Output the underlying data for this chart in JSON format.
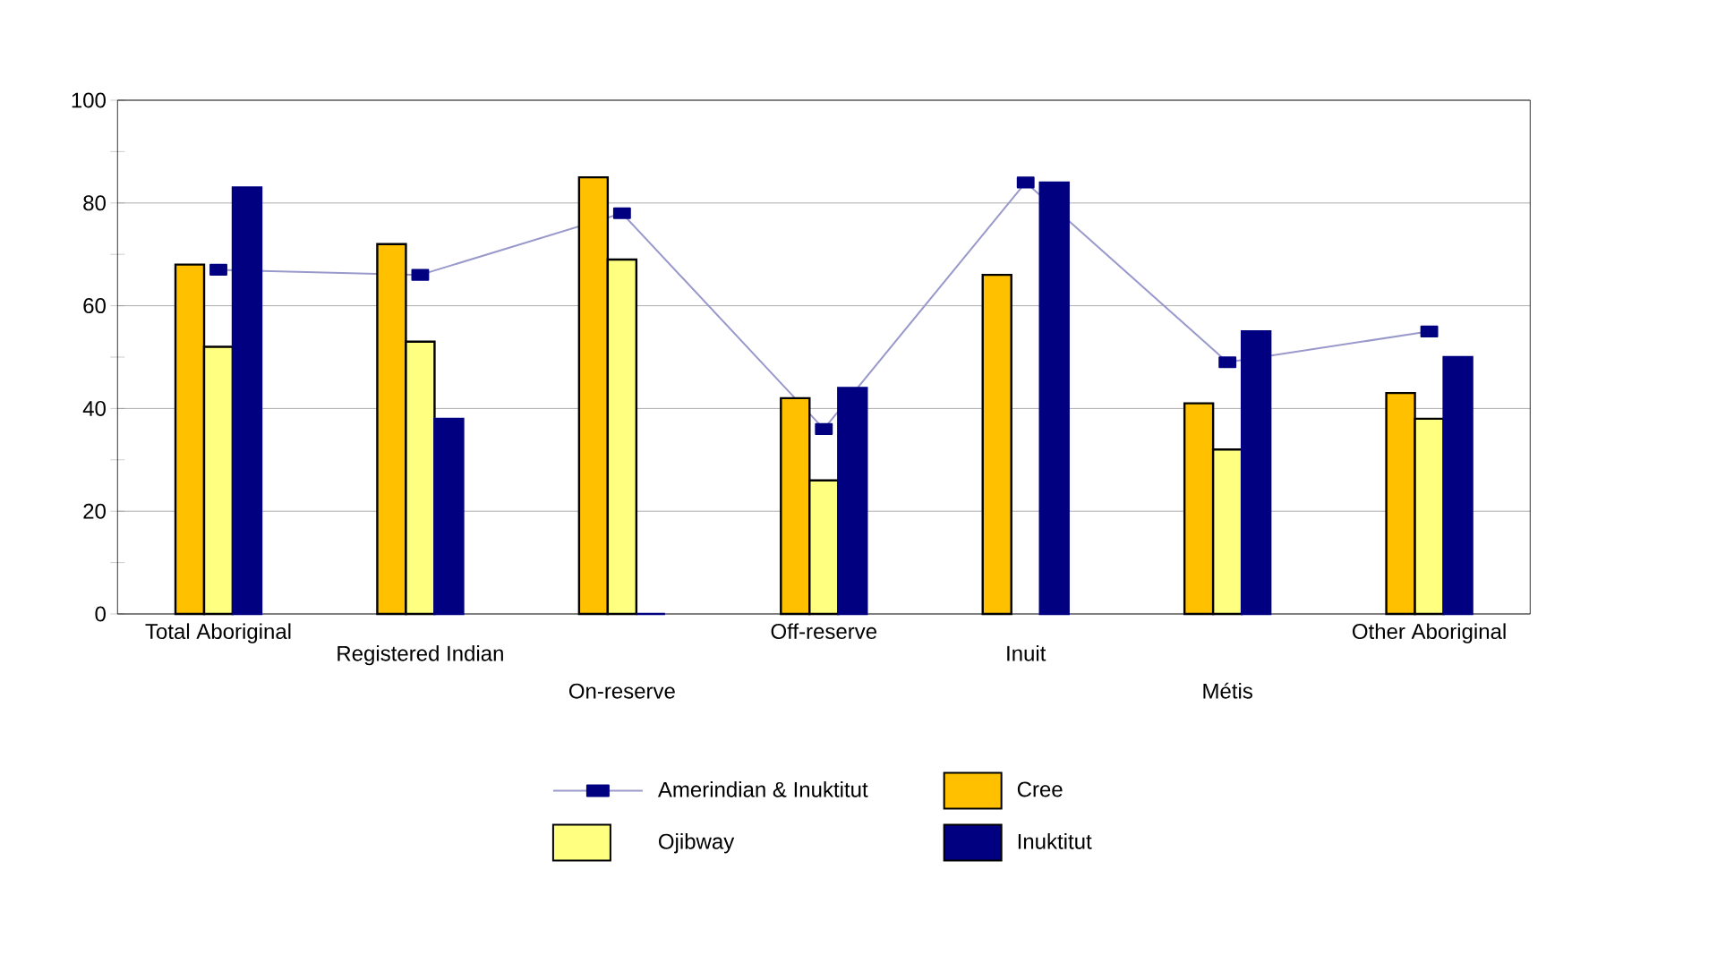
{
  "chart_data": {
    "type": "bar",
    "categories": [
      "Total Aboriginal",
      "Registered Indian",
      "On-reserve",
      "Off-reserve",
      "Inuit",
      "Métis",
      "Other Aboriginal"
    ],
    "series": [
      {
        "name": "Amerindian & Inuktitut",
        "type": "line",
        "color": "#000080",
        "marker": "square",
        "values": [
          67,
          66,
          78,
          36,
          84,
          49,
          55
        ]
      },
      {
        "name": "Cree",
        "color": "#ffc000",
        "values": [
          68,
          72,
          85,
          42,
          66,
          41,
          43
        ]
      },
      {
        "name": "Ojibway",
        "color": "#ffff80",
        "values": [
          52,
          53,
          69,
          26,
          null,
          32,
          38
        ]
      },
      {
        "name": "Inuktitut",
        "color": "#000080",
        "values": [
          83,
          38,
          0,
          44,
          84,
          55,
          50
        ]
      }
    ],
    "ylim": [
      0,
      100
    ],
    "yticks": [
      0,
      20,
      40,
      60,
      80,
      100
    ],
    "grid": "y",
    "legend": "bottom"
  }
}
